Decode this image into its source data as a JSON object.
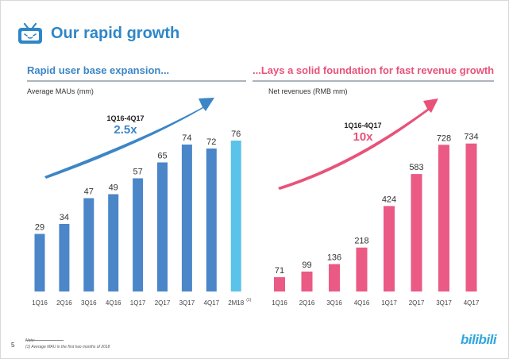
{
  "header": {
    "title": "Our rapid growth",
    "icon": "tv-icon",
    "brand_color": "#2f86c7"
  },
  "left_panel": {
    "heading": "Rapid user base expansion...",
    "subtitle": "Average MAUs (mm)",
    "growth_range": "1Q16-4Q17",
    "growth_multiple": "2.5x"
  },
  "right_panel": {
    "heading": "...Lays a solid foundation for fast revenue growth",
    "subtitle": "Net revenues (RMB mm)",
    "growth_range": "1Q16-4Q17",
    "growth_multiple": "10x"
  },
  "footer": {
    "page_number": "5",
    "note_label": "Note:",
    "footnote": "(1)      Average MAU in the first two months of 2018",
    "logo_text": "bilibili"
  },
  "chart_data": [
    {
      "type": "bar",
      "title": "Average MAUs (mm)",
      "categories": [
        "1Q16",
        "2Q16",
        "3Q16",
        "4Q16",
        "1Q17",
        "2Q17",
        "3Q17",
        "4Q17",
        "2M18"
      ],
      "category_superscripts": [
        "",
        "",
        "",
        "",
        "",
        "",
        "",
        "",
        "(1)"
      ],
      "values": [
        29,
        34,
        47,
        49,
        57,
        65,
        74,
        72,
        76
      ],
      "colors": [
        "#4a86c8",
        "#4a86c8",
        "#4a86c8",
        "#4a86c8",
        "#4a86c8",
        "#4a86c8",
        "#4a86c8",
        "#4a86c8",
        "#5bc3ea"
      ],
      "ylim": [
        0,
        90
      ],
      "grid": false,
      "arrow_color": "#3c86c6"
    },
    {
      "type": "bar",
      "title": "Net revenues (RMB mm)",
      "categories": [
        "1Q16",
        "2Q16",
        "3Q16",
        "4Q16",
        "1Q17",
        "2Q17",
        "3Q17",
        "4Q17"
      ],
      "values": [
        71,
        99,
        136,
        218,
        424,
        583,
        728,
        734
      ],
      "colors": [
        "#ea5a84",
        "#ea5a84",
        "#ea5a84",
        "#ea5a84",
        "#ea5a84",
        "#ea5a84",
        "#ea5a84",
        "#ea5a84"
      ],
      "ylim": [
        0,
        800
      ],
      "grid": false,
      "arrow_color": "#e8527a"
    }
  ]
}
